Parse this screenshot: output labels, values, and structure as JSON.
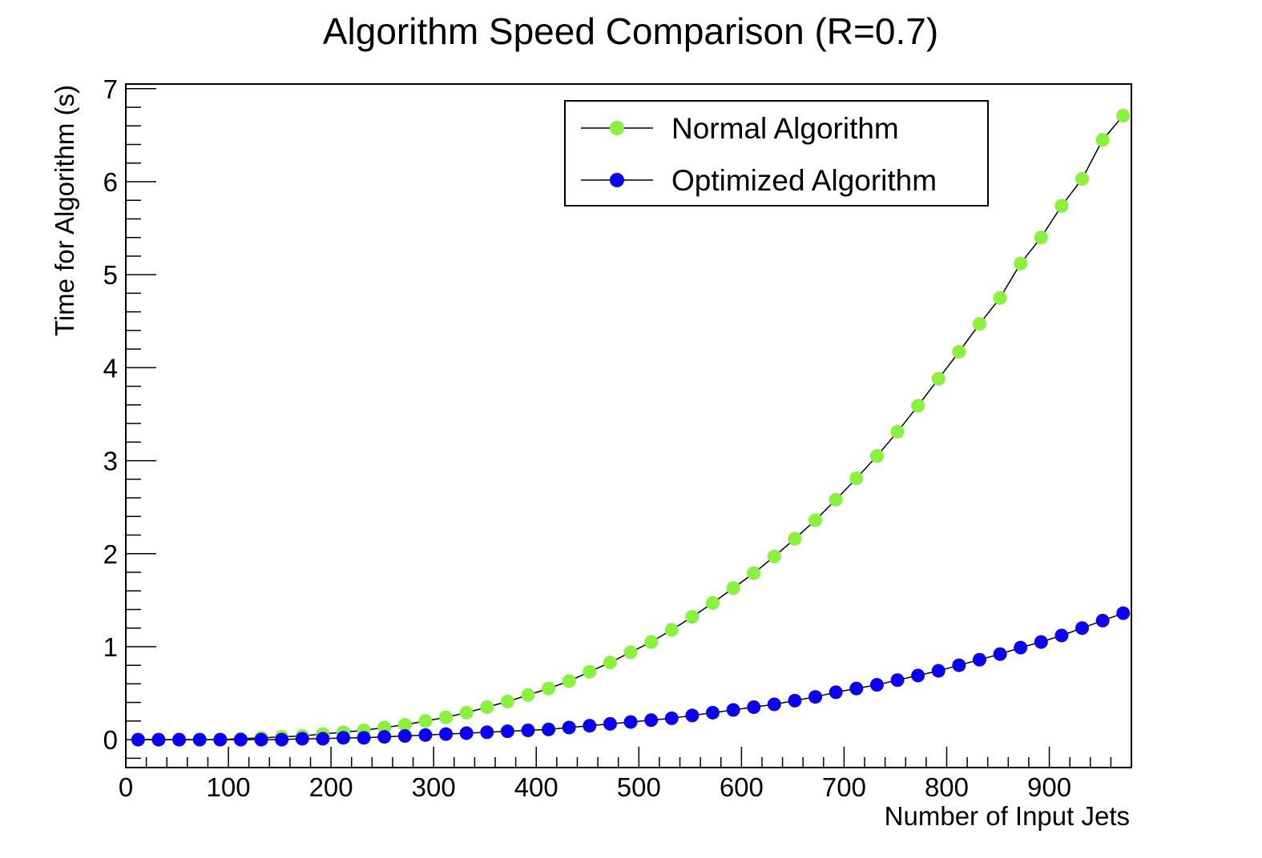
{
  "chart_data": {
    "type": "line",
    "title": "Algorithm Speed Comparison (R=0.7)",
    "xlabel": "Number of Input Jets",
    "ylabel": "Time for Algorithm (s)",
    "xlim": [
      0,
      980
    ],
    "ylim": [
      -0.3,
      7.05
    ],
    "x_ticks": [
      0,
      100,
      200,
      300,
      400,
      500,
      600,
      700,
      800,
      900
    ],
    "x_tick_labels": [
      "0",
      "100",
      "200",
      "300",
      "400",
      "500",
      "600",
      "700",
      "800",
      "900"
    ],
    "y_ticks": [
      0,
      1,
      2,
      3,
      4,
      5,
      6,
      7
    ],
    "y_tick_labels": [
      "0",
      "1",
      "2",
      "3",
      "4",
      "5",
      "6",
      "7"
    ],
    "grid": false,
    "legend_position": "top-right",
    "x": [
      12,
      32,
      52,
      72,
      92,
      112,
      132,
      152,
      172,
      192,
      212,
      232,
      252,
      272,
      292,
      312,
      332,
      352,
      372,
      392,
      412,
      432,
      452,
      472,
      492,
      512,
      532,
      552,
      572,
      592,
      612,
      632,
      652,
      672,
      692,
      712,
      732,
      752,
      772,
      792,
      812,
      832,
      852,
      872,
      892,
      912,
      932,
      952,
      972
    ],
    "series": [
      {
        "name": "Normal Algorithm",
        "color": "#88f23c",
        "values": [
          0.0,
          0.0,
          0.0,
          0.0,
          0.0,
          0.01,
          0.02,
          0.03,
          0.04,
          0.06,
          0.08,
          0.1,
          0.13,
          0.16,
          0.2,
          0.24,
          0.29,
          0.35,
          0.41,
          0.48,
          0.55,
          0.63,
          0.73,
          0.83,
          0.94,
          1.05,
          1.18,
          1.32,
          1.47,
          1.63,
          1.79,
          1.97,
          2.16,
          2.36,
          2.58,
          2.81,
          3.05,
          3.31,
          3.59,
          3.88,
          4.17,
          4.47,
          4.75,
          5.12,
          5.4,
          5.74,
          6.03,
          6.45,
          6.71
        ]
      },
      {
        "name": "Optimized Algorithm",
        "color": "#0a00f2",
        "values": [
          0.0,
          0.0,
          0.0,
          0.0,
          0.0,
          0.0,
          0.0,
          0.0,
          0.01,
          0.01,
          0.02,
          0.02,
          0.03,
          0.04,
          0.05,
          0.06,
          0.07,
          0.08,
          0.09,
          0.1,
          0.11,
          0.13,
          0.15,
          0.17,
          0.19,
          0.21,
          0.23,
          0.26,
          0.29,
          0.32,
          0.35,
          0.38,
          0.42,
          0.46,
          0.51,
          0.55,
          0.59,
          0.64,
          0.69,
          0.74,
          0.8,
          0.86,
          0.92,
          0.99,
          1.05,
          1.12,
          1.2,
          1.28,
          1.36
        ]
      }
    ]
  }
}
